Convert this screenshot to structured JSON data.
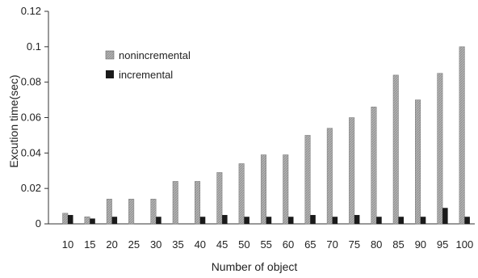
{
  "chart_data": {
    "type": "bar",
    "xlabel": "Number of object",
    "ylabel": "Excution time(sec)",
    "ylim": [
      0,
      0.12
    ],
    "yticks": [
      "0",
      "0.02",
      "0.04",
      "0.06",
      "0.08",
      "0.1",
      "0.12"
    ],
    "ytick_values": [
      0,
      0.02,
      0.04,
      0.06,
      0.08,
      0.1,
      0.12
    ],
    "categories": [
      "10",
      "15",
      "20",
      "25",
      "30",
      "35",
      "40",
      "45",
      "50",
      "55",
      "60",
      "65",
      "70",
      "75",
      "80",
      "85",
      "90",
      "95",
      "100"
    ],
    "series": [
      {
        "name": "nonincremental",
        "color": "#a8a8a8",
        "values": [
          0.006,
          0.004,
          0.014,
          0.014,
          0.014,
          0.024,
          0.024,
          0.029,
          0.034,
          0.039,
          0.039,
          0.05,
          0.054,
          0.06,
          0.066,
          0.084,
          0.07,
          0.085,
          0.1
        ]
      },
      {
        "name": "incremental",
        "color": "#1a1a1a",
        "values": [
          0.005,
          0.003,
          0.004,
          0.0,
          0.004,
          0.0,
          0.004,
          0.005,
          0.004,
          0.004,
          0.004,
          0.005,
          0.004,
          0.005,
          0.004,
          0.004,
          0.004,
          0.009,
          0.004
        ]
      }
    ],
    "grid": false,
    "legend_position": "top-left"
  }
}
